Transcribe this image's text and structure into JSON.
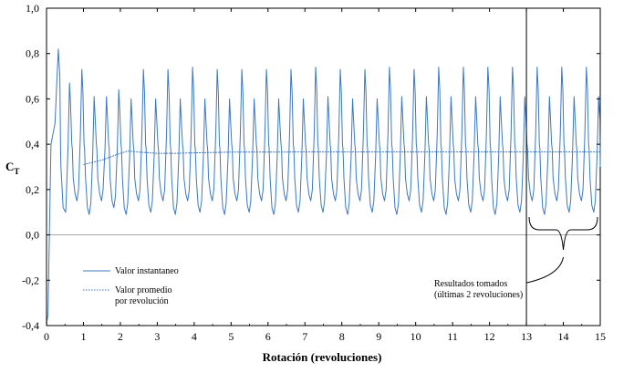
{
  "chart_data": {
    "type": "line",
    "xlabel": "Rotación (revoluciones)",
    "ylabel": "C",
    "ylabel_subscript": "T",
    "xlim": [
      0,
      15
    ],
    "ylim": [
      -0.4,
      1.0
    ],
    "xticks": [
      "0",
      "1",
      "2",
      "3",
      "4",
      "5",
      "6",
      "7",
      "8",
      "9",
      "10",
      "11",
      "12",
      "13",
      "14",
      "15"
    ],
    "yticks": [
      "-0,4",
      "-0,2",
      "0,0",
      "0,2",
      "0,4",
      "0,6",
      "0,8",
      "1,0"
    ],
    "grid": false,
    "legend_position": "bottom-left",
    "series": [
      {
        "name": "Valor instantaneo",
        "style": "solid",
        "color": "#3a78c4",
        "blades_per_revolution": 3,
        "peaks": [
          0.82,
          0.67,
          0.73,
          0.61,
          0.61,
          0.64,
          0.6,
          0.73,
          0.6,
          0.73,
          0.6,
          0.74,
          0.6,
          0.73,
          0.6,
          0.73,
          0.6,
          0.73,
          0.6,
          0.73,
          0.6,
          0.74,
          0.61,
          0.73,
          0.6,
          0.73,
          0.6,
          0.74,
          0.61,
          0.73,
          0.61,
          0.74,
          0.61,
          0.74,
          0.61,
          0.74,
          0.61,
          0.74,
          0.61,
          0.74,
          0.61,
          0.74,
          0.61,
          0.74,
          0.61
        ],
        "troughs": [
          0.1,
          0.11,
          0.15,
          0.09,
          0.15,
          0.12,
          0.09,
          0.15,
          0.1,
          0.15,
          0.09,
          0.15,
          0.1,
          0.15,
          0.09,
          0.15,
          0.1,
          0.15,
          0.09,
          0.15,
          0.1,
          0.15,
          0.1,
          0.15,
          0.09,
          0.15,
          0.1,
          0.15,
          0.09,
          0.15,
          0.1,
          0.15,
          0.09,
          0.15,
          0.1,
          0.15,
          0.09,
          0.15,
          0.1,
          0.15,
          0.09,
          0.15,
          0.1,
          0.15,
          0.1
        ],
        "start_value": -0.4
      },
      {
        "name": "Valor promedio\npor revolución",
        "style": "dotted",
        "color": "#3a78c4",
        "x": [
          1,
          1.5,
          2,
          2.2,
          2.5,
          3,
          3.5,
          4,
          5,
          6,
          7,
          8,
          9,
          10,
          11,
          12,
          13,
          14,
          15
        ],
        "y": [
          0.31,
          0.33,
          0.36,
          0.37,
          0.365,
          0.36,
          0.36,
          0.362,
          0.365,
          0.365,
          0.366,
          0.366,
          0.366,
          0.366,
          0.366,
          0.366,
          0.366,
          0.366,
          0.366
        ]
      }
    ],
    "legend": {
      "instant_label": "Valor instantaneo",
      "average_label_line1": "Valor promedio",
      "average_label_line2": "por revolución"
    },
    "annotation": {
      "line1": "Resultados tomados",
      "line2": "(últimas 2 revoluciones)",
      "range_x": [
        13,
        15
      ]
    }
  }
}
